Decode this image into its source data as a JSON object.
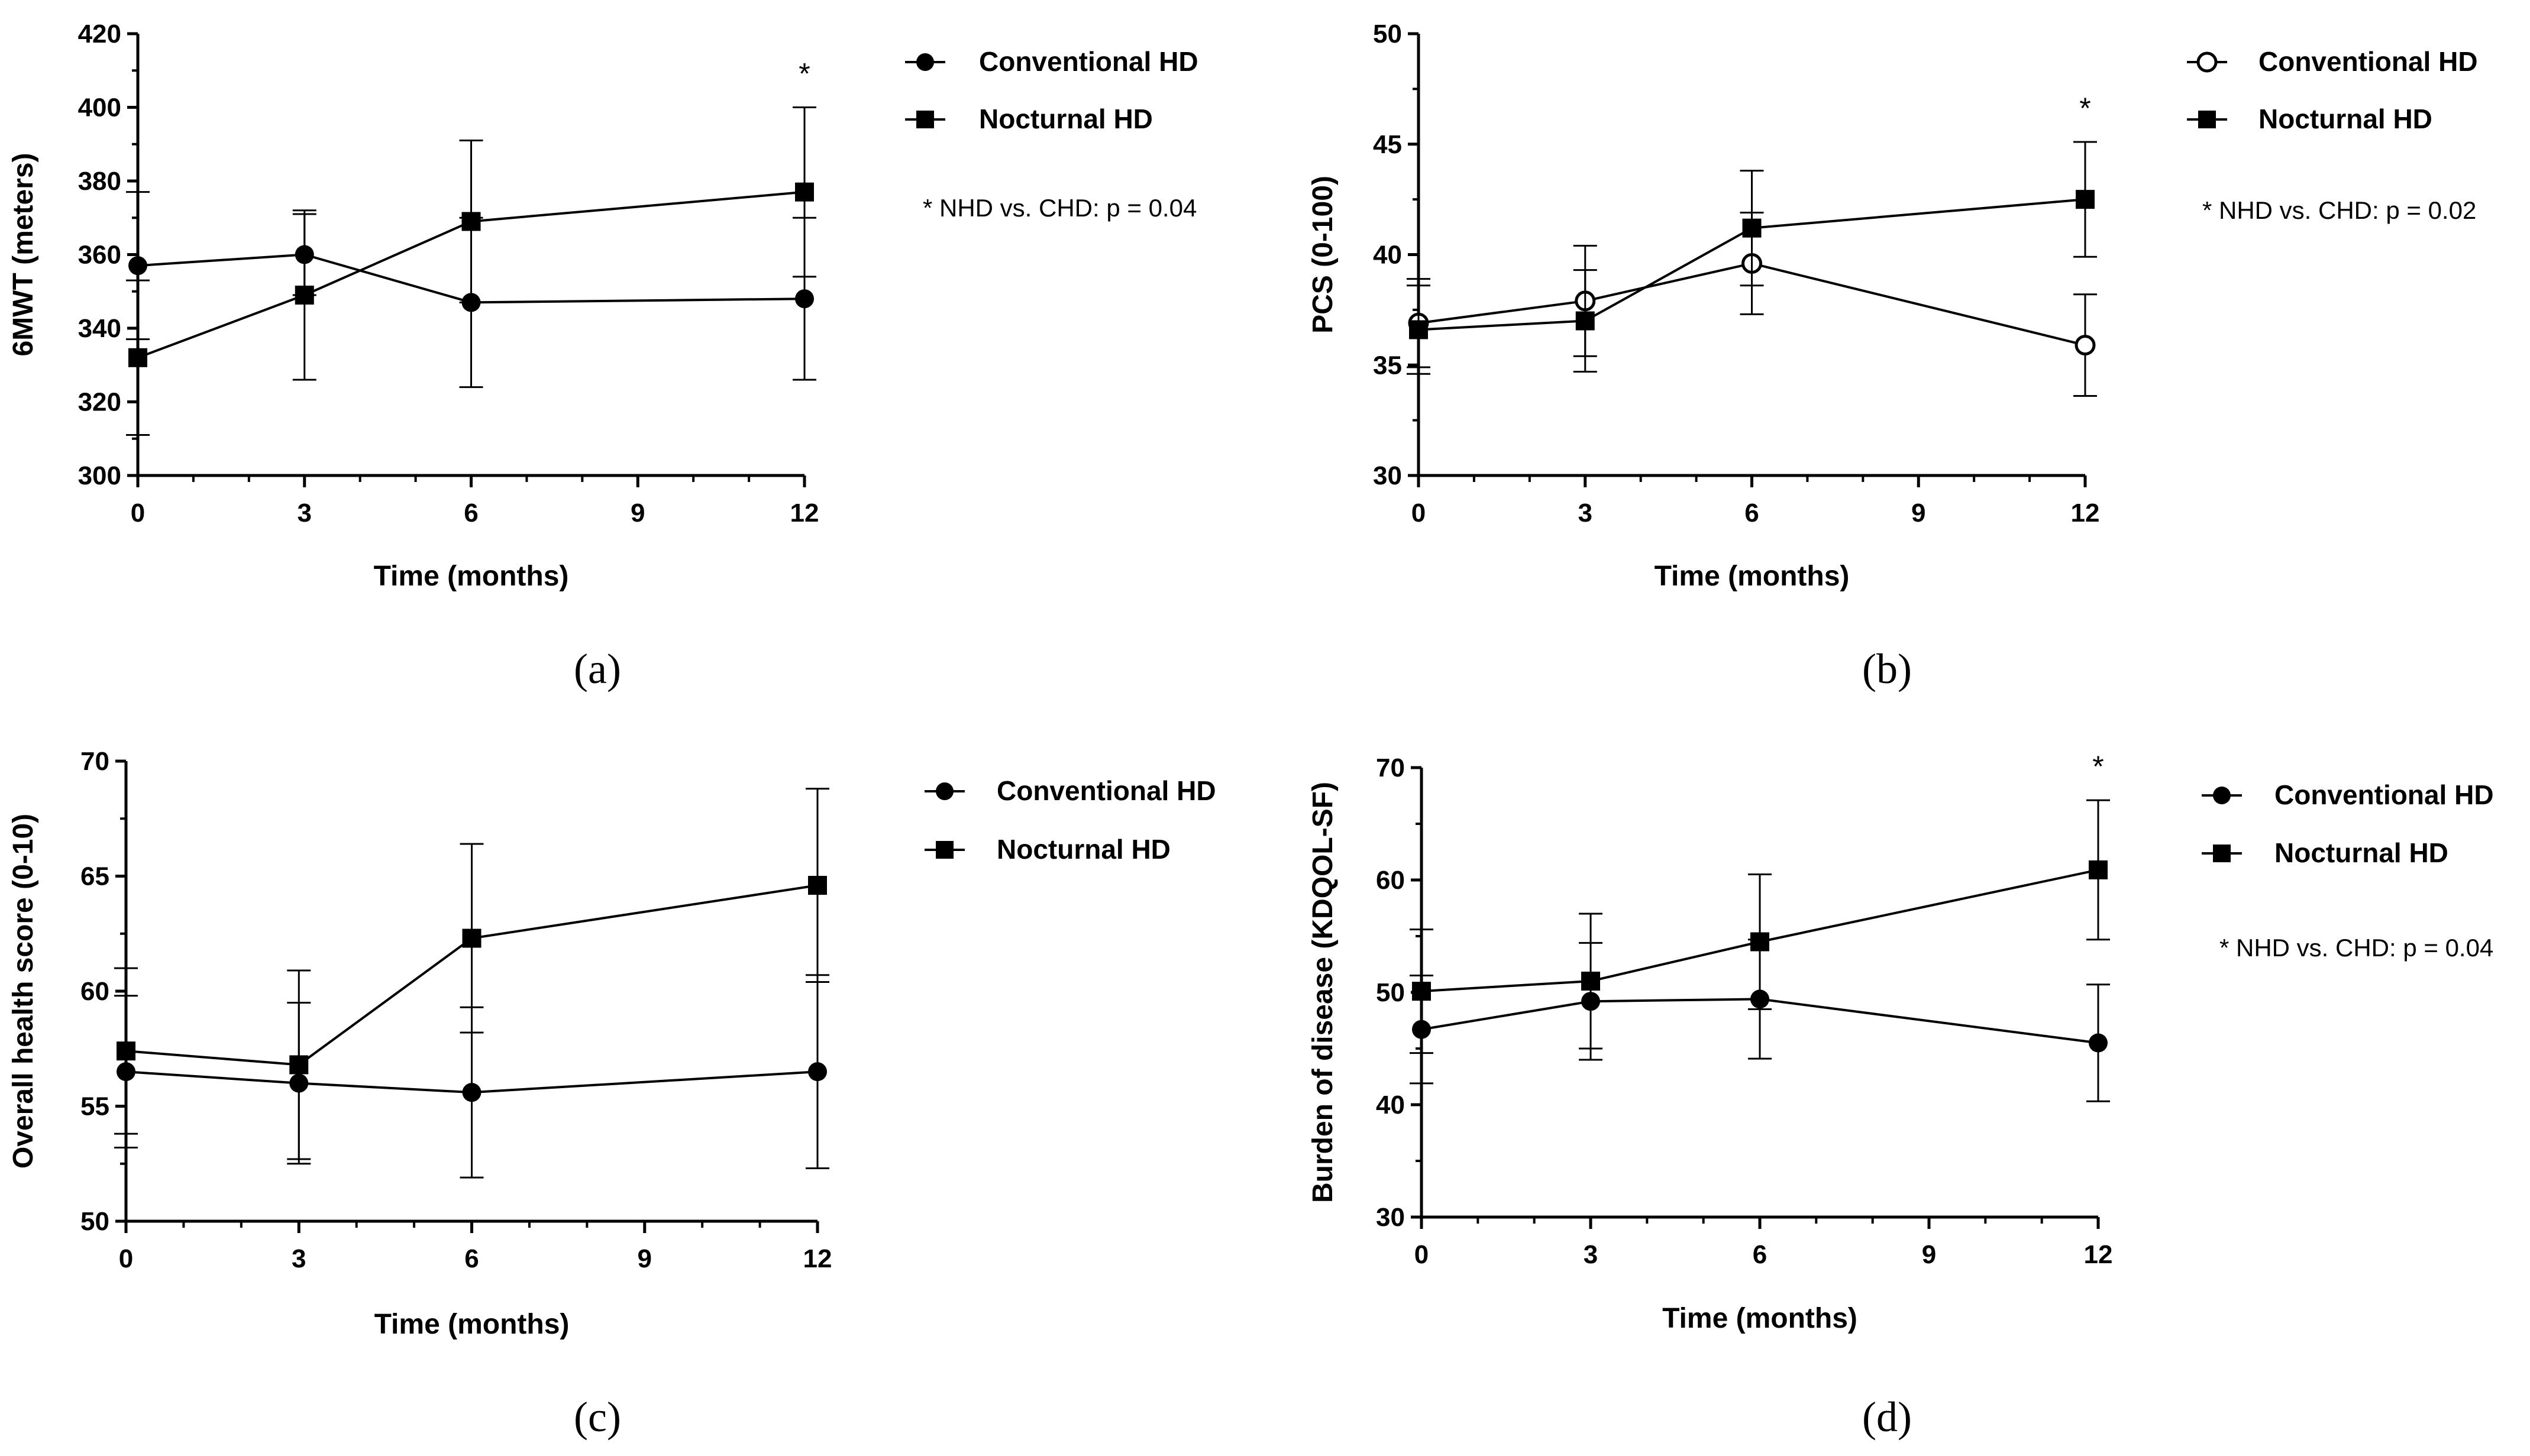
{
  "figure": {
    "panels": [
      {
        "id": "a",
        "label": "(a)",
        "legend": {
          "series_1": "Conventional HD",
          "series_2": "Nocturnal HD"
        },
        "note": "* NHD vs. CHD: p = 0.04"
      },
      {
        "id": "b",
        "label": "(b)",
        "legend": {
          "series_1": "Conventional HD",
          "series_2": "Nocturnal HD"
        },
        "note": "* NHD vs. CHD: p = 0.02"
      },
      {
        "id": "c",
        "label": "(c)",
        "legend": {
          "series_1": "Conventional HD",
          "series_2": "Nocturnal HD"
        },
        "note": ""
      },
      {
        "id": "d",
        "label": "(d)",
        "legend": {
          "series_1": "Conventional HD",
          "series_2": "Nocturnal HD"
        },
        "note": "* NHD vs. CHD: p = 0.04"
      }
    ]
  },
  "chart_data": [
    {
      "type": "line",
      "panel": "a",
      "title": "",
      "xlabel": "Time (months)",
      "ylabel": "6MWT (meters)",
      "x": [
        0,
        3,
        6,
        12
      ],
      "xticks": [
        0,
        3,
        6,
        9,
        12
      ],
      "ylim": [
        300,
        420
      ],
      "yticks": [
        300,
        320,
        340,
        360,
        380,
        400,
        420
      ],
      "series": [
        {
          "name": "Conventional HD",
          "marker": "filled-circle",
          "values": [
            357,
            360,
            347,
            348
          ],
          "errors": [
            20,
            11,
            23,
            22
          ]
        },
        {
          "name": "Nocturnal HD",
          "marker": "filled-square",
          "values": [
            332,
            349,
            369,
            377
          ],
          "errors": [
            21,
            23,
            22,
            23
          ]
        }
      ],
      "annotations": [
        {
          "x": 12,
          "text": "*"
        }
      ]
    },
    {
      "type": "line",
      "panel": "b",
      "title": "",
      "xlabel": "Time (months)",
      "ylabel": "PCS (0-100)",
      "x": [
        0,
        3,
        6,
        12
      ],
      "xticks": [
        0,
        3,
        6,
        9,
        12
      ],
      "ylim": [
        30,
        50
      ],
      "yticks": [
        30,
        35,
        40,
        45,
        50
      ],
      "series": [
        {
          "name": "Conventional HD",
          "marker": "open-circle",
          "values": [
            36.9,
            37.9,
            39.6,
            35.9
          ],
          "errors": [
            2.0,
            2.5,
            2.3,
            2.3
          ]
        },
        {
          "name": "Nocturnal HD",
          "marker": "filled-square",
          "values": [
            36.6,
            37.0,
            41.2,
            42.5
          ],
          "errors": [
            2.0,
            2.3,
            2.6,
            2.6
          ]
        }
      ],
      "annotations": [
        {
          "x": 12,
          "text": "*"
        }
      ]
    },
    {
      "type": "line",
      "panel": "c",
      "title": "",
      "xlabel": "Time (months)",
      "ylabel": "Overall health score (0-10)",
      "x": [
        0,
        3,
        6,
        12
      ],
      "xticks": [
        0,
        3,
        6,
        9,
        12
      ],
      "ylim": [
        50,
        70
      ],
      "yticks": [
        50,
        55,
        60,
        65,
        70
      ],
      "series": [
        {
          "name": "Conventional HD",
          "marker": "filled-circle",
          "values": [
            56.5,
            56.0,
            55.6,
            56.5
          ],
          "errors": [
            3.3,
            3.5,
            3.7,
            4.2
          ]
        },
        {
          "name": "Nocturnal HD",
          "marker": "filled-square",
          "values": [
            57.4,
            56.8,
            62.3,
            64.6
          ],
          "errors": [
            3.6,
            4.1,
            4.1,
            4.2
          ]
        }
      ],
      "annotations": []
    },
    {
      "type": "line",
      "panel": "d",
      "title": "",
      "xlabel": "Time (months)",
      "ylabel": "Burden of disease (KDQOL-SF)",
      "x": [
        0,
        3,
        6,
        12
      ],
      "xticks": [
        0,
        3,
        6,
        9,
        12
      ],
      "ylim": [
        30,
        70
      ],
      "yticks": [
        30,
        40,
        50,
        60,
        70
      ],
      "series": [
        {
          "name": "Conventional HD",
          "marker": "filled-circle",
          "values": [
            46.7,
            49.2,
            49.4,
            45.5
          ],
          "errors": [
            4.8,
            5.2,
            5.3,
            5.2
          ]
        },
        {
          "name": "Nocturnal HD",
          "marker": "filled-square",
          "values": [
            50.1,
            51.0,
            54.5,
            60.9
          ],
          "errors": [
            5.5,
            6.0,
            6.0,
            6.2
          ]
        }
      ],
      "annotations": [
        {
          "x": 12,
          "text": "*"
        }
      ]
    }
  ]
}
